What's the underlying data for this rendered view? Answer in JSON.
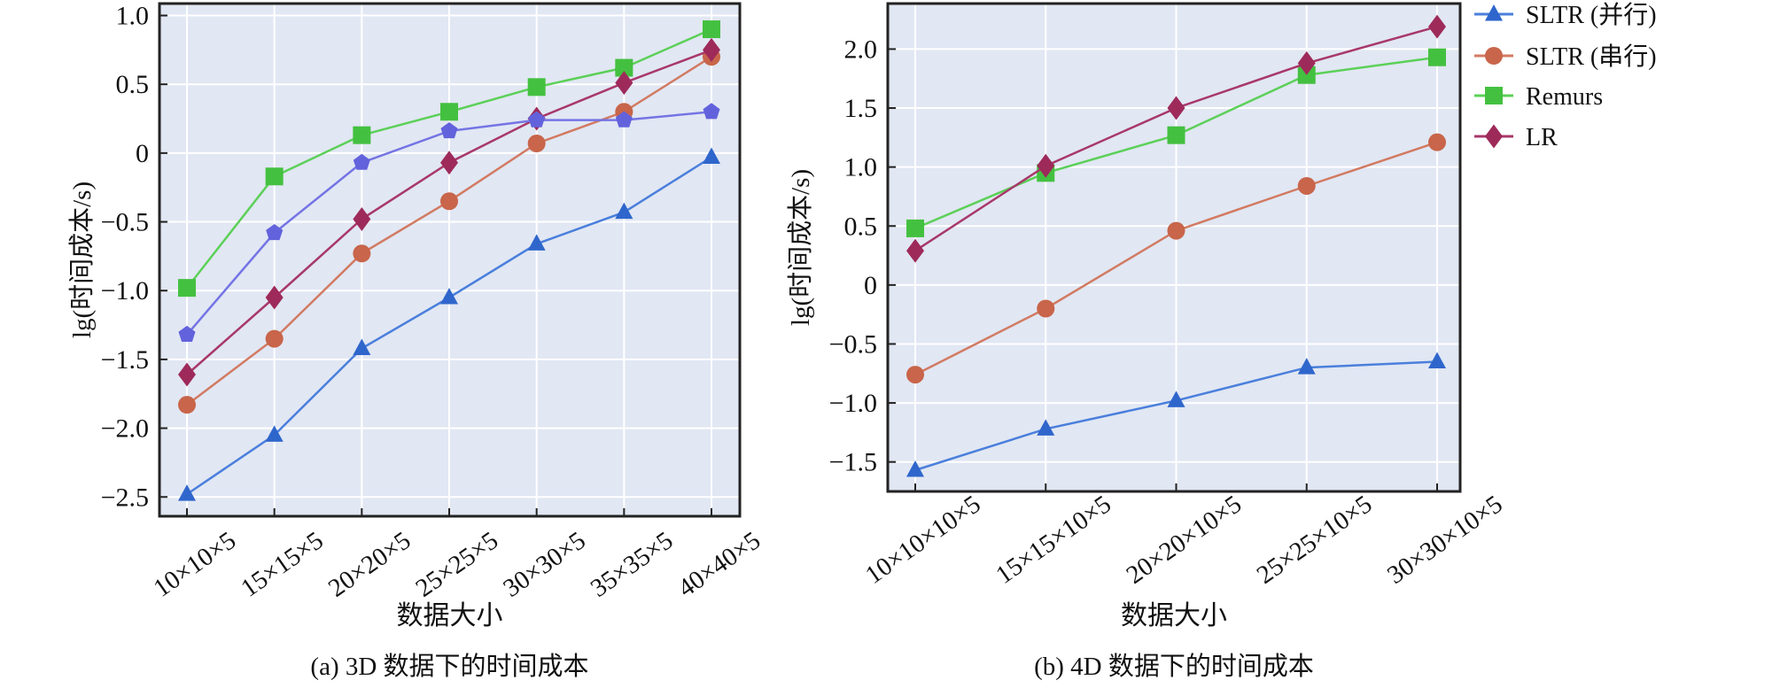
{
  "chart_data": [
    {
      "type": "line",
      "caption": "(a) 3D 数据下的时间成本",
      "xlabel": "数据大小",
      "ylabel": "lg(时间成本/s)",
      "categories": [
        "10×10×5",
        "15×15×5",
        "20×20×5",
        "25×25×5",
        "30×30×5",
        "35×35×5",
        "40×40×5"
      ],
      "ylim": [
        -2.64,
        1.087
      ],
      "yticks": [
        1.0,
        0.5,
        0,
        -0.5,
        -1.0,
        -1.5,
        -2.0,
        -2.5
      ],
      "ytick_labels": [
        "1.0",
        "0.5",
        "0",
        "−0.5",
        "−1.0",
        "−1.5",
        "−2.0",
        "−2.5"
      ],
      "grid": true,
      "series": [
        {
          "name": "SLTR (并行)",
          "marker": "triangle",
          "color": "#2f66cc",
          "line_color": "#4a7fdc",
          "values": [
            -2.48,
            -2.05,
            -1.42,
            -1.05,
            -0.66,
            -0.43,
            -0.03
          ]
        },
        {
          "name": "SLTR (串行)",
          "marker": "circle",
          "color": "#c8654a",
          "line_color": "#d27a62",
          "values": [
            -1.83,
            -1.35,
            -0.73,
            -0.35,
            0.07,
            0.3,
            0.7
          ]
        },
        {
          "name": "Remurs",
          "marker": "square",
          "color": "#44c040",
          "line_color": "#5cd058",
          "values": [
            -0.98,
            -0.17,
            0.13,
            0.3,
            0.48,
            0.62,
            0.9
          ]
        },
        {
          "name": "LR",
          "marker": "diamond",
          "color": "#9e2a5a",
          "line_color": "#a8386a",
          "values": [
            -1.61,
            -1.05,
            -0.48,
            -0.07,
            0.25,
            0.51,
            0.75
          ]
        },
        {
          "marker": "pentagon",
          "color": "#6262dc",
          "line_color": "#7474e4",
          "values": [
            -1.32,
            -0.58,
            -0.07,
            0.16,
            0.24,
            0.24,
            0.3
          ]
        }
      ]
    },
    {
      "type": "line",
      "caption": "(b) 4D 数据下的时间成本",
      "xlabel": "数据大小",
      "ylabel": "lg(时间成本/s)",
      "categories": [
        "10×10×10×5",
        "15×15×10×5",
        "20×20×10×5",
        "25×25×10×5",
        "30×30×10×5"
      ],
      "ylim": [
        -1.75,
        2.386
      ],
      "yticks": [
        2.0,
        1.5,
        1.0,
        0.5,
        0,
        -0.5,
        -1.0,
        -1.5
      ],
      "ytick_labels": [
        "2.0",
        "1.5",
        "1.0",
        "0.5",
        "0",
        "−0.5",
        "−1.0",
        "−1.5"
      ],
      "grid": true,
      "legend_position": "outside-top-right",
      "series": [
        {
          "name": "SLTR (并行)",
          "marker": "triangle",
          "color": "#2f66cc",
          "line_color": "#4a7fdc",
          "values": [
            -1.57,
            -1.22,
            -0.98,
            -0.7,
            -0.65
          ]
        },
        {
          "name": "SLTR (串行)",
          "marker": "circle",
          "color": "#c8654a",
          "line_color": "#d27a62",
          "values": [
            -0.76,
            -0.2,
            0.46,
            0.84,
            1.21
          ]
        },
        {
          "name": "Remurs",
          "marker": "square",
          "color": "#44c040",
          "line_color": "#5cd058",
          "values": [
            0.48,
            0.95,
            1.27,
            1.78,
            1.93
          ]
        },
        {
          "name": "LR",
          "marker": "diamond",
          "color": "#9e2a5a",
          "line_color": "#a8386a",
          "values": [
            0.29,
            1.01,
            1.5,
            1.88,
            2.19
          ]
        }
      ]
    }
  ],
  "legend": [
    {
      "label": "SLTR (并行)",
      "marker": "triangle",
      "color": "#2f66cc",
      "line_color": "#4a7fdc"
    },
    {
      "label": "SLTR (串行)",
      "marker": "circle",
      "color": "#c8654a",
      "line_color": "#d27a62"
    },
    {
      "label": "Remurs",
      "marker": "square",
      "color": "#44c040",
      "line_color": "#5cd058"
    },
    {
      "label": "LR",
      "marker": "diamond",
      "color": "#9e2a5a",
      "line_color": "#a8386a"
    }
  ],
  "colors": {
    "plot_bg": "#e1e7f3",
    "grid": "#ffffff",
    "frame": "#222222"
  }
}
